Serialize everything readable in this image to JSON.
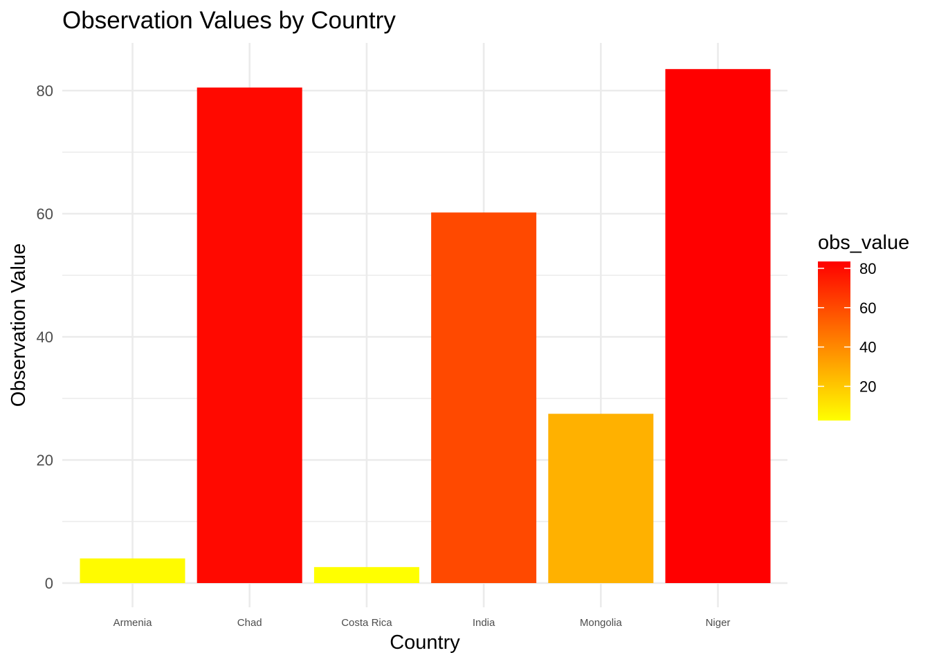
{
  "chart_data": {
    "type": "bar",
    "title": "Observation Values by Country",
    "xlabel": "Country",
    "ylabel": "Observation Value",
    "categories": [
      "Armenia",
      "Chad",
      "Costa Rica",
      "India",
      "Mongolia",
      "Niger"
    ],
    "values": [
      4.0,
      80.5,
      2.6,
      60.2,
      27.5,
      83.5
    ],
    "ylim": [
      0,
      87
    ],
    "yticks": [
      0,
      20,
      40,
      60,
      80
    ],
    "grid": true,
    "legend": {
      "title": "obs_value",
      "placement": "right",
      "type": "colorbar",
      "ticks": [
        20,
        40,
        60,
        80
      ],
      "range": [
        2.6,
        83.5
      ],
      "low_color": "#FFFF00",
      "high_color": "#FF0000"
    }
  }
}
